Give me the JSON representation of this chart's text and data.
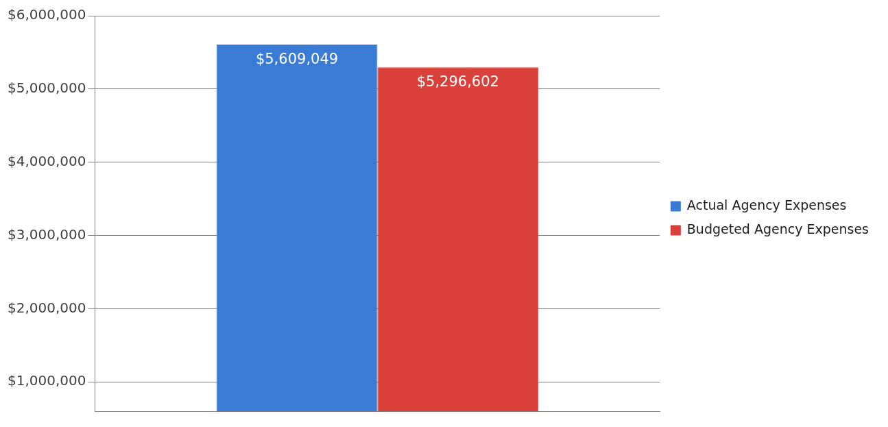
{
  "chart_data": {
    "type": "bar",
    "categories": [
      null
    ],
    "series": [
      {
        "name": "Actual Agency Expenses",
        "color": "#3a7bd5",
        "values": [
          5609049
        ],
        "value_labels": [
          "$5,609,049"
        ]
      },
      {
        "name": "Budgeted Agency Expenses",
        "color": "#d9403a",
        "values": [
          5296602
        ],
        "value_labels": [
          "$5,296,602"
        ]
      }
    ],
    "ylim": [
      600000,
      6000000
    ],
    "yticks": [
      {
        "value": 1000000,
        "label": "$1,000,000"
      },
      {
        "value": 2000000,
        "label": "$2,000,000"
      },
      {
        "value": 3000000,
        "label": "$3,000,000"
      },
      {
        "value": 4000000,
        "label": "$4,000,000"
      },
      {
        "value": 5000000,
        "label": "$5,000,000"
      },
      {
        "value": 6000000,
        "label": "$6,000,000"
      }
    ],
    "grid": "y",
    "legend": "right"
  }
}
